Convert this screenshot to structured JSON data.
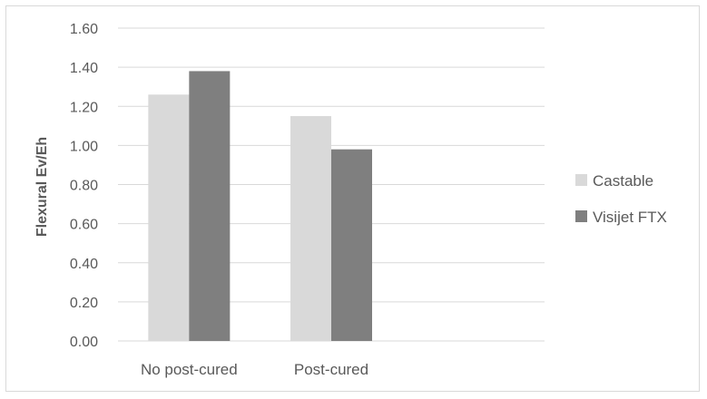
{
  "chart_data": {
    "type": "bar",
    "title": "",
    "xlabel": "",
    "ylabel": "Flexural Ev/Eh",
    "categories": [
      "No post-cured",
      "Post-cured",
      ""
    ],
    "series": [
      {
        "name": "Castable",
        "values": [
          1.26,
          1.15,
          null
        ],
        "color": "#d9d9d9"
      },
      {
        "name": "Visijet FTX",
        "values": [
          1.38,
          0.98,
          null
        ],
        "color": "#7f7f7f"
      }
    ],
    "ylim": [
      0,
      1.6
    ],
    "yticks": [
      "0.00",
      "0.20",
      "0.40",
      "0.60",
      "0.80",
      "1.00",
      "1.20",
      "1.40",
      "1.60"
    ],
    "grid": true,
    "legend": "right"
  }
}
